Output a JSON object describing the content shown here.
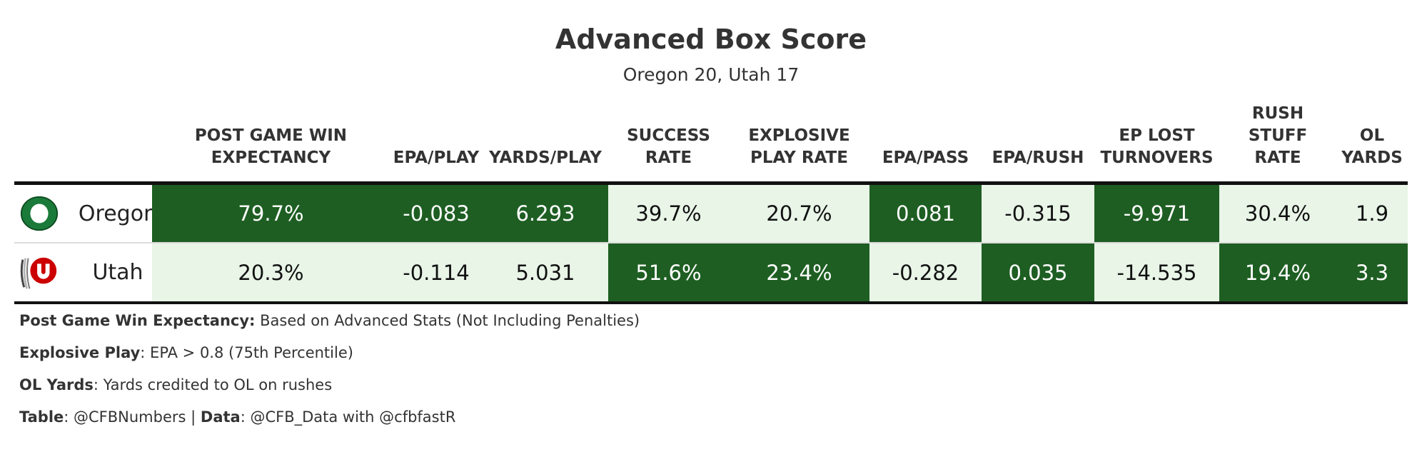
{
  "title": "Advanced Box Score",
  "subtitle": "Oregon 20, Utah 17",
  "colors": {
    "dark": "#1e5e22",
    "light": "#e8f5e7",
    "rule": "#111111"
  },
  "chart_data": {
    "type": "table",
    "columns": [
      {
        "key": "pgwe",
        "lines": [
          "POST GAME WIN",
          "EXPECTANCY"
        ]
      },
      {
        "key": "epa_play",
        "lines": [
          "EPA/PLAY"
        ]
      },
      {
        "key": "ypp",
        "lines": [
          "YARDS/PLAY"
        ]
      },
      {
        "key": "success",
        "lines": [
          "SUCCESS",
          "RATE"
        ]
      },
      {
        "key": "explosive",
        "lines": [
          "EXPLOSIVE",
          "PLAY RATE"
        ]
      },
      {
        "key": "epa_pass",
        "lines": [
          "EPA/PASS"
        ]
      },
      {
        "key": "epa_rush",
        "lines": [
          "EPA/RUSH"
        ]
      },
      {
        "key": "ep_lost",
        "lines": [
          "EP LOST",
          "TURNOVERS"
        ]
      },
      {
        "key": "stuff",
        "lines": [
          "RUSH",
          "STUFF",
          "RATE"
        ]
      },
      {
        "key": "ol_yards",
        "lines": [
          "OL",
          "YARDS"
        ]
      }
    ],
    "rows": [
      {
        "team": "Oregon",
        "logo": "oregon-o-logo",
        "values": [
          "79.7%",
          "-0.083",
          "6.293",
          "39.7%",
          "20.7%",
          "0.081",
          "-0.315",
          "-9.971",
          "30.4%",
          "1.9"
        ],
        "shading": [
          "dark",
          "dark",
          "dark",
          "light",
          "light",
          "dark",
          "light",
          "dark",
          "light",
          "light"
        ]
      },
      {
        "team": "Utah",
        "logo": "utah-u-feathers-logo",
        "values": [
          "20.3%",
          "-0.114",
          "5.031",
          "51.6%",
          "23.4%",
          "-0.282",
          "0.035",
          "-14.535",
          "19.4%",
          "3.3"
        ],
        "shading": [
          "light",
          "light",
          "light",
          "dark",
          "dark",
          "light",
          "dark",
          "light",
          "dark",
          "dark"
        ]
      }
    ]
  },
  "footnotes": [
    {
      "parts": [
        {
          "text": "Post Game Win Expectancy:",
          "bold": true
        },
        {
          "text": " Based on Advanced Stats (Not Including Penalties)",
          "bold": false
        }
      ]
    },
    {
      "parts": [
        {
          "text": "Explosive Play",
          "bold": true
        },
        {
          "text": ": EPA > 0.8 (75th Percentile)",
          "bold": false
        }
      ]
    },
    {
      "parts": [
        {
          "text": "OL Yards",
          "bold": true
        },
        {
          "text": ": Yards credited to OL on rushes",
          "bold": false
        }
      ]
    },
    {
      "parts": [
        {
          "text": "Table",
          "bold": true
        },
        {
          "text": ": @CFBNumbers | ",
          "bold": false
        },
        {
          "text": "Data",
          "bold": true
        },
        {
          "text": ": @CFB_Data with @cfbfastR",
          "bold": false
        }
      ]
    }
  ]
}
